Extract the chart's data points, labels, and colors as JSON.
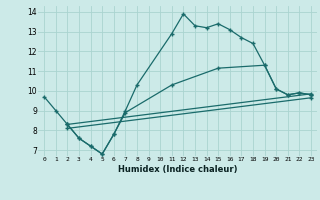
{
  "xlabel": "Humidex (Indice chaleur)",
  "background_color": "#cceae8",
  "grid_color": "#aad4d0",
  "line_color": "#1a6b6b",
  "xlim": [
    -0.5,
    23.5
  ],
  "ylim": [
    6.7,
    14.3
  ],
  "xtick_vals": [
    0,
    1,
    2,
    3,
    4,
    5,
    6,
    7,
    8,
    9,
    10,
    11,
    12,
    13,
    14,
    15,
    16,
    17,
    18,
    19,
    20,
    21,
    22,
    23
  ],
  "ytick_vals": [
    7,
    8,
    9,
    10,
    11,
    12,
    13,
    14
  ],
  "line1_x": [
    0,
    1,
    2,
    3,
    4,
    5,
    6,
    7,
    8,
    11,
    12,
    13,
    14,
    15,
    16,
    17,
    18,
    19,
    20,
    21,
    22,
    23
  ],
  "line1_y": [
    9.7,
    9.0,
    8.3,
    7.6,
    7.2,
    6.8,
    7.8,
    9.0,
    10.3,
    12.9,
    13.9,
    13.3,
    13.2,
    13.4,
    13.1,
    12.7,
    12.4,
    11.3,
    10.1,
    9.8,
    9.9,
    9.8
  ],
  "line2_x": [
    2,
    3,
    4,
    5,
    6,
    7,
    11,
    15,
    19,
    20,
    21,
    22,
    23
  ],
  "line2_y": [
    8.3,
    7.6,
    7.2,
    6.8,
    7.8,
    8.9,
    10.3,
    11.15,
    11.3,
    10.1,
    9.8,
    9.9,
    9.8
  ],
  "line3_x": [
    2,
    23
  ],
  "line3_y": [
    8.3,
    9.85
  ],
  "line4_x": [
    2,
    23
  ],
  "line4_y": [
    8.1,
    9.65
  ]
}
